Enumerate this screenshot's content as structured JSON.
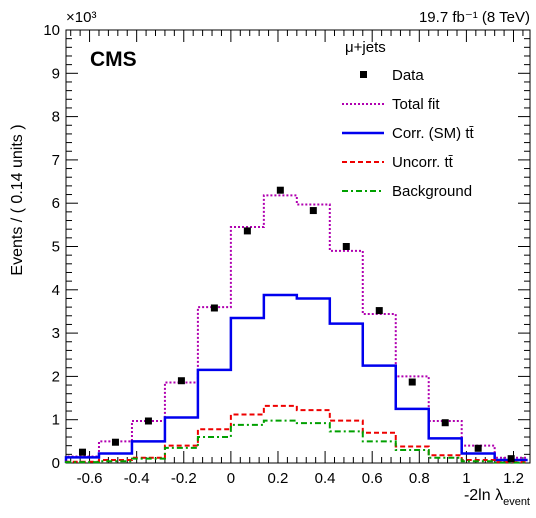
{
  "chart_data": {
    "type": "histogram",
    "header_right": "19.7 fb⁻¹ (8 TeV)",
    "experiment_label": "CMS",
    "channel_label": "μ+jets",
    "y_multiplier": "×10³",
    "xlabel": "-2ln λ",
    "xlabel_subscript": "event",
    "ylabel": "Events / ( 0.14 units )",
    "xlim": [
      -0.7,
      1.27
    ],
    "ylim": [
      0,
      10
    ],
    "xticks": [
      -0.6,
      -0.4,
      -0.2,
      0,
      0.2,
      0.4,
      0.6,
      0.8,
      1,
      1.2
    ],
    "xtick_labels": [
      "-0.6",
      "-0.4",
      "-0.2",
      "0",
      "0.2",
      "0.4",
      "0.6",
      "0.8",
      "1",
      "1.2"
    ],
    "yticks": [
      0,
      1,
      2,
      3,
      4,
      5,
      6,
      7,
      8,
      9,
      10
    ],
    "ytick_labels": [
      "0",
      "1",
      "2",
      "3",
      "4",
      "5",
      "6",
      "7",
      "8",
      "9",
      "10"
    ],
    "bin_edges": [
      -0.7,
      -0.56,
      -0.42,
      -0.28,
      -0.14,
      0.0,
      0.14,
      0.28,
      0.42,
      0.56,
      0.7,
      0.84,
      0.98,
      1.12,
      1.26
    ],
    "data_points": {
      "name": "Data",
      "x": [
        -0.63,
        -0.49,
        -0.35,
        -0.21,
        -0.07,
        0.07,
        0.21,
        0.35,
        0.49,
        0.63,
        0.77,
        0.91,
        1.05,
        1.19
      ],
      "y": [
        0.25,
        0.48,
        0.97,
        1.9,
        3.58,
        5.36,
        6.3,
        5.83,
        5.0,
        3.52,
        1.87,
        0.93,
        0.34,
        0.1
      ]
    },
    "series": [
      {
        "name": "Total fit",
        "color": "#b000b0",
        "style": "dotted",
        "values": [
          0.15,
          0.5,
          0.97,
          1.86,
          3.6,
          5.45,
          6.18,
          5.97,
          4.9,
          3.44,
          2.0,
          0.97,
          0.4,
          0.12
        ]
      },
      {
        "name": "Corr. (SM) tt̄",
        "color": "#0000ee",
        "style": "solid",
        "values": [
          0.13,
          0.22,
          0.5,
          1.05,
          2.15,
          3.35,
          3.88,
          3.8,
          3.22,
          2.25,
          1.25,
          0.57,
          0.22,
          0.07
        ]
      },
      {
        "name": "Uncorr. tt̄",
        "color": "#ee0000",
        "style": "dashed",
        "values": [
          0.03,
          0.07,
          0.12,
          0.4,
          0.78,
          1.12,
          1.32,
          1.22,
          0.98,
          0.7,
          0.38,
          0.18,
          0.07,
          0.02
        ]
      },
      {
        "name": "Background",
        "color": "#00a000",
        "style": "dashdot",
        "values": [
          0.02,
          0.04,
          0.1,
          0.35,
          0.6,
          0.88,
          0.98,
          0.92,
          0.73,
          0.5,
          0.3,
          0.12,
          0.04,
          0.01
        ]
      }
    ],
    "legend": [
      {
        "label": "Data",
        "kind": "marker"
      },
      {
        "label": "Total fit",
        "kind": "line",
        "color": "#b000b0",
        "style": "dotted"
      },
      {
        "label": "Corr. (SM) tt̄",
        "kind": "line",
        "color": "#0000ee",
        "style": "solid"
      },
      {
        "label": "Uncorr. tt̄",
        "kind": "line",
        "color": "#ee0000",
        "style": "dashed"
      },
      {
        "label": "Background",
        "kind": "line",
        "color": "#00a000",
        "style": "dashdot"
      }
    ]
  }
}
